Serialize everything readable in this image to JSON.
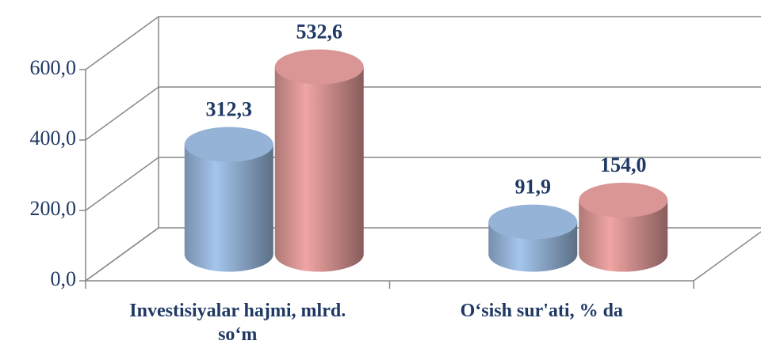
{
  "chart_data": {
    "type": "bar3d",
    "categories": [
      "Investisiyalar hajmi, mlrd. so‘m",
      "O‘sish sur'ati, % da"
    ],
    "series": [
      {
        "color": "#95b3d7",
        "values": [
          312.3,
          91.9
        ],
        "value_labels": [
          "312,3",
          "91,9"
        ]
      },
      {
        "color": "#d99694",
        "values": [
          532.6,
          154.0
        ],
        "value_labels": [
          "532,6",
          "154,0"
        ]
      }
    ],
    "ylim": [
      0,
      600
    ],
    "yticks": [
      {
        "value": 0,
        "label": "0,0"
      },
      {
        "value": 200,
        "label": "200,0"
      },
      {
        "value": 400,
        "label": "400,0"
      },
      {
        "value": 600,
        "label": "600,0"
      }
    ],
    "grid": true
  }
}
